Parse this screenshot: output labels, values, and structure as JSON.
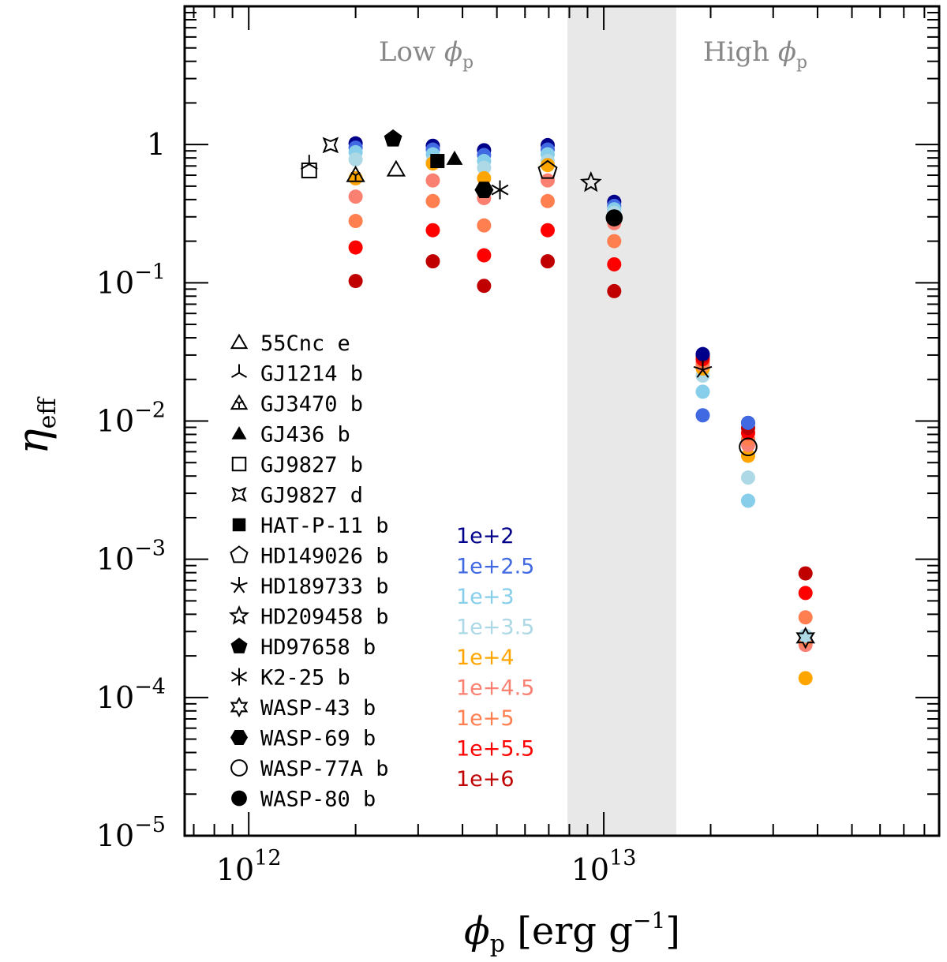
{
  "chart_data": {
    "type": "scatter",
    "title": "",
    "xlabel": "ϕp [erg g⁻¹]",
    "ylabel": "ηeff",
    "xscale": "log",
    "yscale": "log",
    "xlim": [
      660000000000.0,
      88000000000000.0
    ],
    "ylim": [
      1e-05,
      10
    ],
    "x_ticks": [
      {
        "value": 1000000000000.0,
        "base": "10",
        "exp": "12"
      },
      {
        "value": 10000000000000.0,
        "base": "10",
        "exp": "13"
      }
    ],
    "y_ticks": [
      {
        "value": 1,
        "label": "1",
        "base": "",
        "exp": ""
      },
      {
        "value": 0.1,
        "label": "",
        "base": "10",
        "exp": "−1"
      },
      {
        "value": 0.01,
        "label": "",
        "base": "10",
        "exp": "−2"
      },
      {
        "value": 0.001,
        "label": "",
        "base": "10",
        "exp": "−3"
      },
      {
        "value": 0.0001,
        "label": "",
        "base": "10",
        "exp": "−4"
      },
      {
        "value": 1e-05,
        "label": "",
        "base": "10",
        "exp": "−5"
      }
    ],
    "regions": [
      {
        "name": "Low ϕp",
        "main": "Low ",
        "sym": "ϕ",
        "sub": "p"
      },
      {
        "name": "High ϕp",
        "main": "High ",
        "sym": "ϕ",
        "sub": "p"
      }
    ],
    "shaded_band_x": [
      7900000000000.0,
      16000000000000.0
    ],
    "color_legend": [
      {
        "label": "1e+2",
        "color": "#00008B"
      },
      {
        "label": "1e+2.5",
        "color": "#4169E1"
      },
      {
        "label": "1e+3",
        "color": "#87CEEB"
      },
      {
        "label": "1e+3.5",
        "color": "#ADD8E6"
      },
      {
        "label": "1e+4",
        "color": "#FFA500"
      },
      {
        "label": "1e+4.5",
        "color": "#FA8072"
      },
      {
        "label": "1e+5",
        "color": "#FF7F50"
      },
      {
        "label": "1e+5.5",
        "color": "#FF0000"
      },
      {
        "label": "1e+6",
        "color": "#C00000"
      }
    ],
    "grid_series": [
      {
        "x": 2000000000000.0,
        "y": [
          1.02,
          0.95,
          0.88,
          0.78,
          0.57,
          0.42,
          0.28,
          0.18,
          0.103
        ],
        "colors": [
          0,
          1,
          2,
          3,
          4,
          5,
          6,
          7,
          8
        ]
      },
      {
        "x": 3300000000000.0,
        "y": [
          0.98,
          0.92,
          0.85,
          0.75,
          0.73,
          0.55,
          0.39,
          0.24,
          0.143
        ],
        "colors": [
          0,
          1,
          2,
          3,
          4,
          5,
          6,
          7,
          8
        ]
      },
      {
        "x": 4600000000000.0,
        "y": [
          0.91,
          0.84,
          0.76,
          0.68,
          0.57,
          0.41,
          0.26,
          0.158,
          0.095
        ],
        "colors": [
          0,
          1,
          2,
          3,
          4,
          5,
          6,
          7,
          8
        ]
      },
      {
        "x": 6950000000000.0,
        "y": [
          0.99,
          0.92,
          0.85,
          0.76,
          0.71,
          0.55,
          0.39,
          0.24,
          0.143
        ],
        "colors": [
          0,
          1,
          2,
          3,
          4,
          5,
          6,
          7,
          8
        ]
      },
      {
        "x": 10700000000000.0,
        "y": [
          0.385,
          0.36,
          0.34,
          0.32,
          0.29,
          0.27,
          0.2,
          0.136,
          0.087
        ],
        "colors": [
          0,
          1,
          2,
          3,
          4,
          5,
          6,
          7,
          8
        ]
      },
      {
        "x": 19000000000000.0,
        "y": [
          0.011,
          0.0163,
          0.0213,
          0.024,
          0.0255,
          0.0265,
          0.028,
          0.0295,
          0.0305
        ],
        "colors": [
          1,
          2,
          3,
          4,
          5,
          6,
          7,
          8,
          0
        ]
      },
      {
        "x": 25500000000000.0,
        "y": [
          0.00265,
          0.0039,
          0.0056,
          0.0067,
          0.0074,
          0.0082,
          0.0089,
          0.0097,
          0.0097
        ],
        "colors": [
          2,
          3,
          4,
          5,
          6,
          7,
          8,
          0,
          1
        ]
      },
      {
        "x": 37000000000000.0,
        "y": [
          0.000138,
          0.00024,
          0.00026,
          0.00028,
          0.00038,
          0.00057,
          0.00079
        ],
        "colors": [
          4,
          5,
          6,
          3,
          6,
          7,
          8
        ]
      }
    ],
    "planets": [
      {
        "name": "55Cnc e",
        "marker": "triangle-open",
        "x": 2600000000000.0,
        "y": 0.66
      },
      {
        "name": "GJ1214 b",
        "marker": "tripod",
        "x": 1480000000000.0,
        "y": 0.72
      },
      {
        "name": "GJ3470 b",
        "marker": "tripod-triangle",
        "x": 2000000000000.0,
        "y": 0.6
      },
      {
        "name": "GJ436 b",
        "marker": "triangle-filled",
        "x": 3800000000000.0,
        "y": 0.79
      },
      {
        "name": "GJ9827 b",
        "marker": "square-open",
        "x": 1480000000000.0,
        "y": 0.65
      },
      {
        "name": "GJ9827 d",
        "marker": "star4-open",
        "x": 1700000000000.0,
        "y": 0.99
      },
      {
        "name": "HAT-P-11 b",
        "marker": "square-filled",
        "x": 3400000000000.0,
        "y": 0.76
      },
      {
        "name": "HD149026 b",
        "marker": "pentagon-open",
        "x": 6950000000000.0,
        "y": 0.65
      },
      {
        "name": "HD189733 b",
        "marker": "star5-skeletal",
        "x": 19000000000000.0,
        "y": 0.0235
      },
      {
        "name": "HD209458 b",
        "marker": "star5-open",
        "x": 9200000000000.0,
        "y": 0.53
      },
      {
        "name": "HD97658 b",
        "marker": "pentagon-filled",
        "x": 2550000000000.0,
        "y": 1.1
      },
      {
        "name": "K2-25 b",
        "marker": "asterisk",
        "x": 5100000000000.0,
        "y": 0.47
      },
      {
        "name": "WASP-43 b",
        "marker": "star6-open",
        "x": 37000000000000.0,
        "y": 0.00027
      },
      {
        "name": "WASP-69 b",
        "marker": "hexagon-filled",
        "x": 4600000000000.0,
        "y": 0.47
      },
      {
        "name": "WASP-77A b",
        "marker": "circle-open",
        "x": 25500000000000.0,
        "y": 0.0065
      },
      {
        "name": "WASP-80 b",
        "marker": "circle-filled",
        "x": 10700000000000.0,
        "y": 0.295
      }
    ]
  }
}
